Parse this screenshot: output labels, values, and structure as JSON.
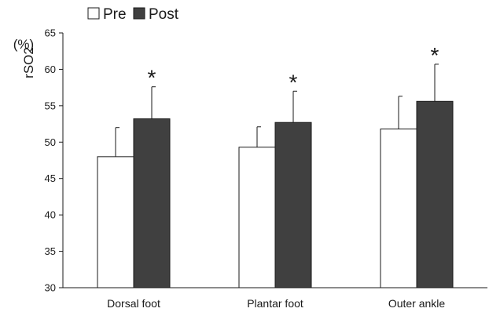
{
  "chart_data": {
    "type": "bar",
    "categories": [
      "Dorsal foot",
      "Plantar foot",
      "Outer ankle"
    ],
    "series": [
      {
        "name": "Pre",
        "values": [
          48.0,
          49.3,
          51.8
        ],
        "error": [
          4.0,
          2.8,
          4.5
        ],
        "color": "#ffffff"
      },
      {
        "name": "Post",
        "values": [
          53.2,
          52.7,
          55.6
        ],
        "error": [
          4.4,
          4.3,
          5.1
        ],
        "color": "#404040"
      }
    ],
    "annotations": [
      "*",
      "*",
      "*"
    ],
    "ylabel": "rSO2",
    "yunit": "(%)",
    "ylim": [
      30,
      65
    ],
    "yticks": [
      30,
      35,
      40,
      45,
      50,
      55,
      60,
      65
    ],
    "grid": false,
    "legend_placement": "top-left"
  }
}
